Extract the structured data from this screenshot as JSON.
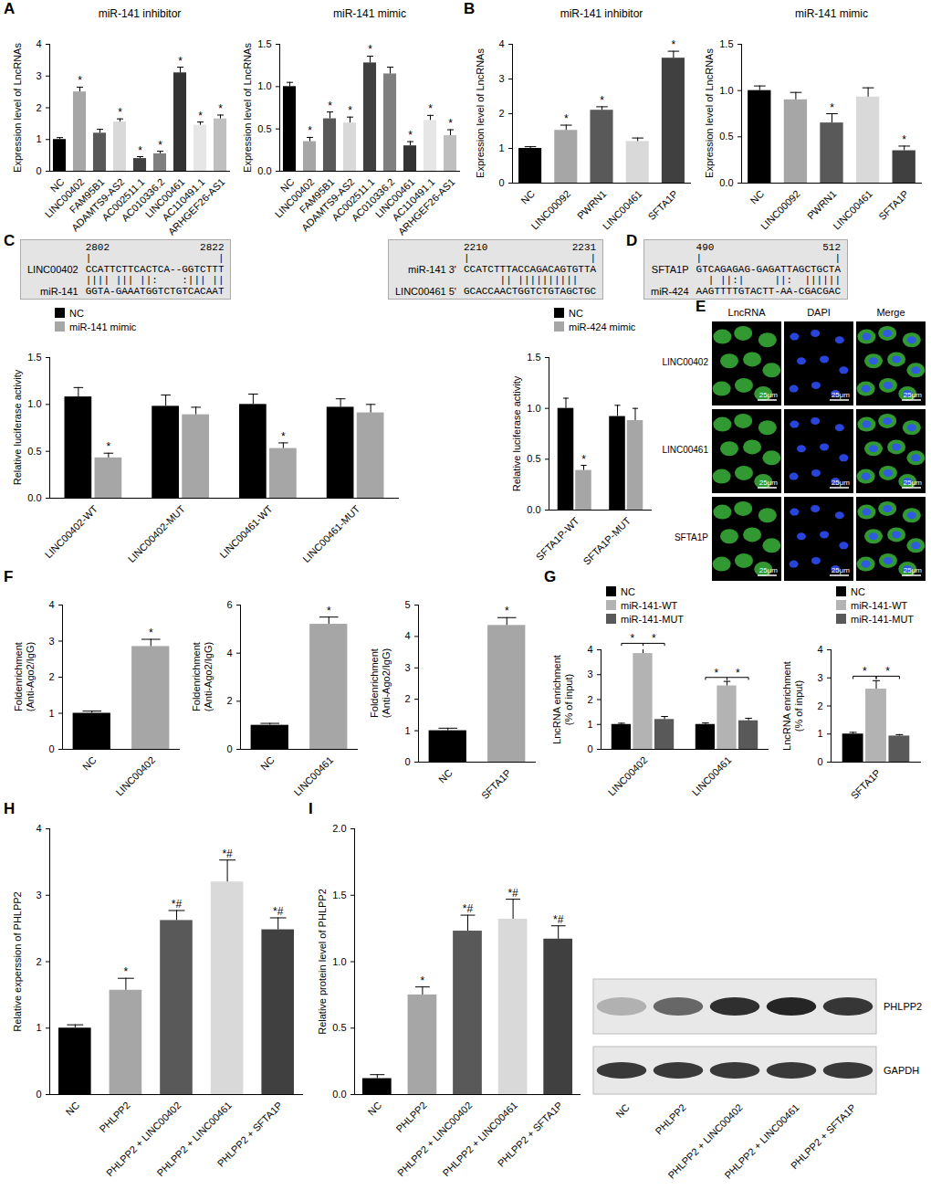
{
  "chart_data": [
    {
      "type": "bar",
      "title": "miR-141 inhibitor",
      "categories": [
        "NC",
        "LINC00402",
        "FAM95B1",
        "ADAMTS9-AS2",
        "AC002511.1",
        "AC010336.2",
        "LINC00461",
        "AC110491.1",
        "ARHGEF26-AS1"
      ],
      "values": [
        1.0,
        2.5,
        1.2,
        1.55,
        0.4,
        0.55,
        3.1,
        1.45,
        1.65
      ],
      "errors": [
        0.06,
        0.15,
        0.12,
        0.1,
        0.06,
        0.08,
        0.18,
        0.1,
        0.12
      ],
      "significance": [
        null,
        "*",
        null,
        "*",
        "*",
        "*",
        "*",
        "*",
        "*"
      ],
      "colors": [
        "#000000",
        "#a6a6a6",
        "#595959",
        "#d9d9d9",
        "#404040",
        "#7f7f7f",
        "#333333",
        "#e6e6e6",
        "#bfbfbf"
      ],
      "ylabel": "Expression level of LncRNAs",
      "ylim": [
        0,
        4
      ],
      "yticks": [
        0,
        1,
        2,
        3,
        4
      ]
    },
    {
      "type": "bar",
      "title": "miR-141 mimic",
      "categories": [
        "NC",
        "LINC00402",
        "FAM95B1",
        "ADAMTS9-AS2",
        "AC002511.1",
        "AC010336.2",
        "LINC00461",
        "AC110491.1",
        "ARHGEF26-AS1"
      ],
      "values": [
        1.0,
        0.35,
        0.62,
        0.57,
        1.28,
        1.15,
        0.3,
        0.6,
        0.42
      ],
      "errors": [
        0.05,
        0.05,
        0.08,
        0.07,
        0.08,
        0.08,
        0.05,
        0.06,
        0.07
      ],
      "significance": [
        null,
        "*",
        "*",
        "*",
        "*",
        null,
        "*",
        "*",
        "*"
      ],
      "colors": [
        "#000000",
        "#a6a6a6",
        "#595959",
        "#d9d9d9",
        "#404040",
        "#7f7f7f",
        "#333333",
        "#e6e6e6",
        "#bfbfbf"
      ],
      "ylabel": "Expression level of LncRNAs",
      "ylim": [
        0,
        1.5
      ],
      "yticks": [
        {
          "value": 0,
          "label": "0.0"
        },
        0.5,
        {
          "value": 1,
          "label": "1.0"
        },
        1.5
      ]
    },
    {
      "type": "bar",
      "title": "miR-141 inhibitor",
      "categories": [
        "NC",
        "LINC00092",
        "PWRN1",
        "LINC00461",
        "SFTA1P"
      ],
      "values": [
        1.0,
        1.52,
        2.1,
        1.2,
        3.6
      ],
      "errors": [
        0.05,
        0.15,
        0.1,
        0.1,
        0.2
      ],
      "significance": [
        null,
        "*",
        "*",
        null,
        "*"
      ],
      "colors": [
        "#000000",
        "#a6a6a6",
        "#595959",
        "#d9d9d9",
        "#404040"
      ],
      "ylabel": "Expression level of LncRNAs",
      "ylim": [
        0,
        4
      ],
      "yticks": [
        0,
        1,
        2,
        3,
        4
      ]
    },
    {
      "type": "bar",
      "title": "miR-141 mimic",
      "categories": [
        "NC",
        "LINC00092",
        "PWRN1",
        "LINC00461",
        "SFTA1P"
      ],
      "values": [
        1.0,
        0.9,
        0.65,
        0.93,
        0.35
      ],
      "errors": [
        0.05,
        0.08,
        0.1,
        0.1,
        0.05
      ],
      "significance": [
        null,
        null,
        "*",
        null,
        "*"
      ],
      "colors": [
        "#000000",
        "#a6a6a6",
        "#595959",
        "#d9d9d9",
        "#404040"
      ],
      "ylabel": "Expression level of LncRNAs",
      "ylim": [
        0,
        1.5
      ],
      "yticks": [
        {
          "value": 0,
          "label": "0.0"
        },
        0.5,
        {
          "value": 1,
          "label": "1.0"
        },
        1.5
      ]
    },
    {
      "type": "bar",
      "categories": [
        "LINC00402-WT",
        "LINC00402-MUT",
        "LINC00461-WT",
        "LINC00461-MUT"
      ],
      "series": [
        {
          "name": "NC",
          "color": "#000000",
          "values": [
            1.08,
            0.98,
            1.0,
            0.97
          ],
          "errors": [
            0.1,
            0.12,
            0.11,
            0.09
          ]
        },
        {
          "name": "miR-141 mimic",
          "color": "#a6a6a6",
          "values": [
            0.43,
            0.89,
            0.53,
            0.91
          ],
          "errors": [
            0.05,
            0.08,
            0.06,
            0.09
          ],
          "significance": [
            "*",
            null,
            "*",
            null
          ]
        }
      ],
      "legend": "top-left",
      "ylabel": "Relative luciferase activity",
      "ylim": [
        0,
        1.5
      ],
      "yticks": [
        {
          "value": 0,
          "label": "0.0"
        },
        0.5,
        {
          "value": 1,
          "label": "1.0"
        },
        1.5
      ]
    },
    {
      "type": "bar",
      "categories": [
        "SFTA1P-WT",
        "SFTA1P-MUT"
      ],
      "series": [
        {
          "name": "NC",
          "color": "#000000",
          "values": [
            1.0,
            0.92
          ],
          "errors": [
            0.1,
            0.11
          ]
        },
        {
          "name": "miR-424 mimic",
          "color": "#a6a6a6",
          "values": [
            0.39,
            0.88
          ],
          "errors": [
            0.05,
            0.12
          ],
          "significance": [
            "*",
            null
          ]
        }
      ],
      "legend": "top-left",
      "ylabel": "Relative luciferase activity",
      "ylim": [
        0,
        1.5
      ],
      "yticks": [
        {
          "value": 0,
          "label": "0.0"
        },
        0.5,
        {
          "value": 1,
          "label": "1.0"
        },
        1.5
      ]
    },
    {
      "type": "bar",
      "categories": [
        "NC",
        "LINC00402"
      ],
      "values": [
        1.0,
        2.85
      ],
      "errors": [
        0.06,
        0.2
      ],
      "significance": [
        null,
        "*"
      ],
      "colors": [
        "#000000",
        "#a6a6a6"
      ],
      "ylabel": [
        "Foldenrichment",
        "(Anti-Ago2/IgG)"
      ],
      "ylim": [
        0,
        4
      ],
      "yticks": [
        0,
        1,
        2,
        3,
        4
      ]
    },
    {
      "type": "bar",
      "categories": [
        "NC",
        "LINC00461"
      ],
      "values": [
        1.0,
        5.2
      ],
      "errors": [
        0.08,
        0.3
      ],
      "significance": [
        null,
        "*"
      ],
      "colors": [
        "#000000",
        "#a6a6a6"
      ],
      "ylabel": [
        "Foldenrichment",
        "(Anti-Ago2/IgG)"
      ],
      "ylim": [
        0,
        6
      ],
      "yticks": [
        0,
        2,
        4,
        6
      ]
    },
    {
      "type": "bar",
      "categories": [
        "NC",
        "SFTA1P"
      ],
      "values": [
        1.0,
        4.35
      ],
      "errors": [
        0.08,
        0.25
      ],
      "significance": [
        null,
        "*"
      ],
      "colors": [
        "#000000",
        "#a6a6a6"
      ],
      "ylabel": [
        "Foldenrichment",
        "(Anti-Ago2/IgG)"
      ],
      "ylim": [
        0,
        5
      ],
      "yticks": [
        0,
        1,
        2,
        3,
        4,
        5
      ]
    },
    {
      "type": "bar",
      "categories": [
        "LINC00402",
        "LINC00461"
      ],
      "series": [
        {
          "name": "NC",
          "color": "#000000",
          "values": [
            1.0,
            1.0
          ],
          "errors": [
            0.05,
            0.06
          ]
        },
        {
          "name": "miR-141-WT",
          "color": "#b3b3b3",
          "values": [
            3.85,
            2.55
          ],
          "errors": [
            0.25,
            0.18
          ]
        },
        {
          "name": "miR-141-MUT",
          "color": "#595959",
          "values": [
            1.2,
            1.15
          ],
          "errors": [
            0.12,
            0.1
          ]
        }
      ],
      "comparisons": [
        {
          "category": "LINC00402",
          "from": "NC",
          "to": "miR-141-WT",
          "label": "*"
        },
        {
          "category": "LINC00402",
          "from": "miR-141-WT",
          "to": "miR-141-MUT",
          "label": "*"
        },
        {
          "category": "LINC00461",
          "from": "NC",
          "to": "miR-141-WT",
          "label": "*"
        },
        {
          "category": "LINC00461",
          "from": "miR-141-WT",
          "to": "miR-141-MUT",
          "label": "*"
        }
      ],
      "legend": "top-left",
      "ylabel": [
        "LncRNA enrichment",
        "(% of input)"
      ],
      "ylim": [
        0,
        4
      ],
      "yticks": [
        0,
        1,
        2,
        3,
        4
      ]
    },
    {
      "type": "bar",
      "categories": [
        "SFTA1P"
      ],
      "series": [
        {
          "name": "NC",
          "color": "#000000",
          "values": [
            1.0
          ],
          "errors": [
            0.06
          ]
        },
        {
          "name": "miR-141-WT",
          "color": "#b3b3b3",
          "values": [
            2.6
          ],
          "errors": [
            0.3
          ]
        },
        {
          "name": "miR-141-MUT",
          "color": "#595959",
          "values": [
            0.93
          ],
          "errors": [
            0.05
          ]
        }
      ],
      "comparisons": [
        {
          "category": "SFTA1P",
          "from": "NC",
          "to": "miR-141-WT",
          "label": "*"
        },
        {
          "category": "SFTA1P",
          "from": "miR-141-WT",
          "to": "miR-141-MUT",
          "label": "*"
        }
      ],
      "legend": "top-left",
      "ylabel": [
        "LncRNA enrichment",
        "(% of input)"
      ],
      "ylim": [
        0,
        4
      ],
      "yticks": [
        0,
        1,
        2,
        3,
        4
      ]
    },
    {
      "type": "bar",
      "categories": [
        "NC",
        "PHLPP2",
        "PHLPP2 + LINC00402",
        "PHLPP2 + LINC00461",
        "PHLPP2 + SFTA1P"
      ],
      "values": [
        1.0,
        1.57,
        2.62,
        3.2,
        2.48
      ],
      "errors": [
        0.05,
        0.18,
        0.15,
        0.33,
        0.18
      ],
      "significance": [
        null,
        "*",
        "*#",
        "*#",
        "*#"
      ],
      "colors": [
        "#000000",
        "#a6a6a6",
        "#595959",
        "#d9d9d9",
        "#404040"
      ],
      "ylabel": "Relative experssion of PHLPP2",
      "ylim": [
        0,
        4
      ],
      "yticks": [
        0,
        1,
        2,
        3,
        4
      ]
    },
    {
      "type": "bar",
      "categories": [
        "NC",
        "PHLPP2",
        "PHLPP2 + LINC00402",
        "PHLPP2 + LINC00461",
        "PHLPP2 + SFTA1P"
      ],
      "values": [
        0.12,
        0.75,
        1.23,
        1.32,
        1.17
      ],
      "errors": [
        0.03,
        0.06,
        0.12,
        0.15,
        0.1
      ],
      "significance": [
        null,
        "*",
        "*#",
        "*#",
        "*#"
      ],
      "colors": [
        "#000000",
        "#a6a6a6",
        "#595959",
        "#d9d9d9",
        "#404040"
      ],
      "ylabel": "Relative protein level of PHLPP2",
      "ylim": [
        0,
        2
      ],
      "yticks": [
        {
          "value": 0,
          "label": "0.0"
        },
        0.5,
        {
          "value": 1,
          "label": "1.0"
        },
        1.5,
        {
          "value": 2,
          "label": "2.0"
        }
      ]
    }
  ],
  "panel_labels": [
    "A",
    "B",
    "C",
    "D",
    "E",
    "F",
    "G",
    "H",
    "I"
  ],
  "alignments": [
    {
      "start": 2802,
      "end": 2822,
      "top_name": "LINC00402",
      "top": "CCATTCTTCACTCA--GGTCTTT",
      "match": "|||| ||| ||:    :||| ||",
      "bottom_name": "miR-141",
      "bottom": "GGTA-GAAATGGTCTGTCACAAT"
    },
    {
      "start": 2210,
      "end": 2231,
      "top_name": "miR-141",
      "top_strand": "3'",
      "top": "CCATCTTTACCAGACAGTGTTA",
      "match": "      || ||||||||||   ",
      "bottom_name": "LINC00461",
      "bottom_strand": "5'",
      "bottom": "GCACCAACTGGTCTGTAGCTGC"
    },
    {
      "start": 490,
      "end": 512,
      "top_name": "SFTA1P",
      "top": "GTCAGAGAG-GAGATTAGCTGCTA",
      "match": "  | ||:|     ||:  ||||||",
      "bottom_name": "miR-424",
      "bottom": "AAGTTTTGTACTT-AA-CGACGAC"
    }
  ],
  "images": {
    "columns": [
      "LncRNA",
      "DAPI",
      "Merge"
    ],
    "rows": [
      "LINC00402",
      "LINC00461",
      "SFTA1P"
    ],
    "scale_bar": "25μm"
  },
  "blot": {
    "bands": [
      "PHLPP2",
      "GAPDH"
    ],
    "lanes": [
      "NC",
      "PHLPP2",
      "PHLPP2 + LINC00402",
      "PHLPP2 + LINC00461",
      "PHLPP2 + SFTA1P"
    ]
  }
}
